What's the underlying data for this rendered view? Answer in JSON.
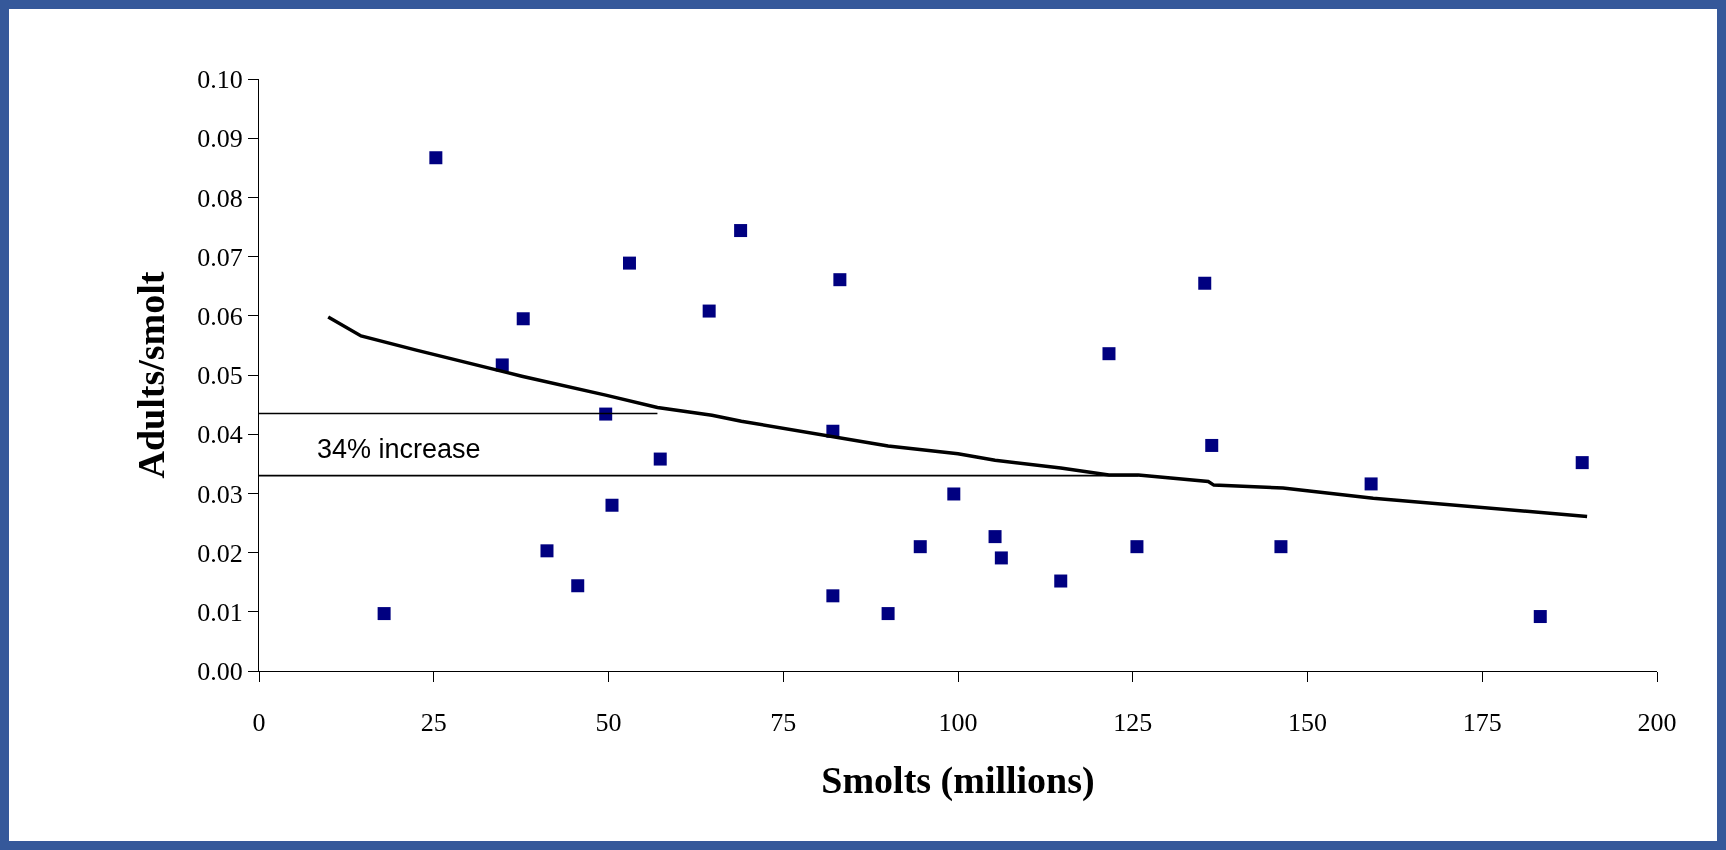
{
  "chart_data": {
    "type": "scatter",
    "xlabel": "Smolts (millions)",
    "ylabel": "Adults/smolt",
    "xlim": [
      0,
      200
    ],
    "xticks": [
      0,
      25,
      50,
      75,
      100,
      125,
      150,
      175,
      200
    ],
    "ylim": [
      0,
      0.1
    ],
    "yticks": [
      {
        "value": 0,
        "label": "0.00"
      },
      {
        "value": 0.01,
        "label": "0.01"
      },
      {
        "value": 0.02,
        "label": "0.02"
      },
      {
        "value": 0.03,
        "label": "0.03"
      },
      {
        "value": 0.04,
        "label": "0.04"
      },
      {
        "value": 0.05,
        "label": "0.05"
      },
      {
        "value": 0.06,
        "label": "0.06"
      },
      {
        "value": 0.07,
        "label": "0.07"
      },
      {
        "value": 0.08,
        "label": "0.08"
      },
      {
        "value": 0.09,
        "label": "0.09"
      },
      {
        "value": 0.1,
        "label": "0.10"
      }
    ],
    "grid": false,
    "legend": false,
    "line_style": "solid",
    "series": [
      {
        "marker": "square",
        "color": "#000080",
        "x": [
          17.9,
          25.3,
          34.8,
          37.8,
          41.2,
          45.6,
          49.6,
          50.5,
          53.0,
          57.4,
          64.4,
          68.9,
          82.1,
          82.1,
          83.1,
          90.0,
          94.6,
          99.4,
          105.3,
          106.2,
          114.7,
          121.6,
          125.6,
          135.3,
          136.3,
          146.2,
          159.1,
          183.3,
          189.3
        ],
        "values": [
          0.0097,
          0.0867,
          0.0517,
          0.0595,
          0.0203,
          0.0144,
          0.0434,
          0.028,
          0.0689,
          0.0358,
          0.0608,
          0.0744,
          0.0405,
          0.0127,
          0.0661,
          0.0097,
          0.021,
          0.0299,
          0.0227,
          0.0191,
          0.0152,
          0.0536,
          0.021,
          0.0655,
          0.0381,
          0.021,
          0.0316,
          0.0092,
          0.0352
        ]
      },
      {
        "type": "line",
        "color": "#000000",
        "x": [
          9.9,
          14.6,
          22.5,
          37.6,
          49.6,
          57,
          64.8,
          69,
          90,
          100,
          105.3,
          114.7,
          121.6,
          125.8,
          135.8,
          136.6,
          146.5,
          159.4,
          190
        ],
        "values": [
          0.0598,
          0.0566,
          0.0542,
          0.0498,
          0.0466,
          0.0445,
          0.0432,
          0.0422,
          0.038,
          0.0367,
          0.0356,
          0.0343,
          0.0331,
          0.0331,
          0.032,
          0.0314,
          0.0309,
          0.0292,
          0.0261
        ]
      },
      {
        "type": "line",
        "color": "#000000",
        "x": [
          0,
          57
        ],
        "values": [
          0.0435,
          0.0435
        ]
      },
      {
        "type": "line",
        "color": "#000000",
        "x": [
          0,
          125.8
        ],
        "values": [
          0.033,
          0.033
        ]
      }
    ],
    "annotations": [
      "34% increase"
    ]
  }
}
